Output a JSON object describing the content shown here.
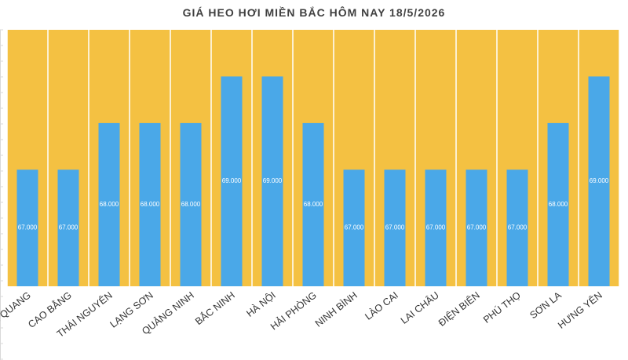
{
  "title": "GIÁ HEO HƠI MIỀN BẮC HÔM NAY 18/5/2026",
  "chart_data": {
    "type": "bar",
    "title": "GIÁ HEO HƠI MIỀN BẮC HÔM NAY 18/5/2026",
    "xlabel": "",
    "ylabel": "",
    "ylim": [
      64500,
      70000
    ],
    "categories": [
      "TUYÊN QUANG",
      "CAO BẰNG",
      "THÁI NGUYÊN",
      "LẠNG SƠN",
      "QUẢNG NINH",
      "BẮC NINH",
      "HÀ NỘI",
      "HẢI PHÒNG",
      "NINH BÌNH",
      "LÀO CAI",
      "LAI CHÂU",
      "ĐIỆN BIÊN",
      "PHÚ THỌ",
      "SƠN LA",
      "HƯNG YÊN"
    ],
    "values": [
      67000,
      67000,
      68000,
      68000,
      68000,
      69000,
      69000,
      68000,
      67000,
      67000,
      67000,
      67000,
      67000,
      68000,
      69000
    ],
    "data_labels": [
      "67.000",
      "67.000",
      "68.000",
      "68.000",
      "68.000",
      "69.000",
      "69.000",
      "68.000",
      "67.000",
      "67.000",
      "67.000",
      "67.000",
      "67.000",
      "68.000",
      "69.000"
    ],
    "grid": false,
    "legend": "none",
    "colors": {
      "bar": "#4aa8e8",
      "plot_background": "#f4c142",
      "separator": "#ffffff",
      "label_text": "#ffffff",
      "tick_text": "#333333",
      "title_text": "#404040"
    }
  }
}
